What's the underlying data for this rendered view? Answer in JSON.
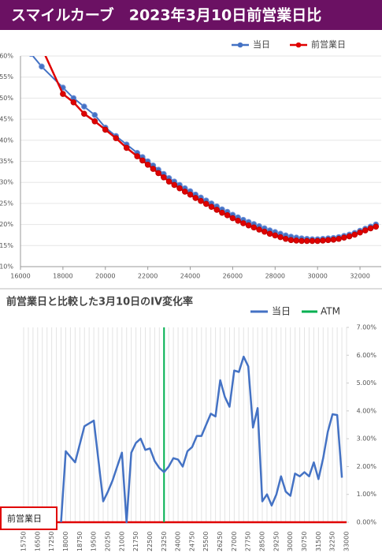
{
  "header": {
    "title": "スマイルカーブ　2023年3月10日前営業日比"
  },
  "chart_data": [
    {
      "type": "line",
      "x": [
        16500,
        17000,
        18000,
        18500,
        19000,
        19500,
        20000,
        20500,
        21000,
        21500,
        21750,
        22000,
        22250,
        22500,
        22750,
        23000,
        23250,
        23500,
        23750,
        24000,
        24250,
        24500,
        24750,
        25000,
        25250,
        25500,
        25750,
        26000,
        26250,
        26500,
        26750,
        27000,
        27250,
        27500,
        27750,
        28000,
        28250,
        28500,
        28750,
        29000,
        29250,
        29500,
        29750,
        30000,
        30250,
        30500,
        30750,
        31000,
        31250,
        31500,
        31750,
        32000,
        32250,
        32500,
        32750
      ],
      "series": [
        {
          "name": "当日",
          "color": "#4472c4",
          "values": [
            60.5,
            57.5,
            52.5,
            50,
            48,
            46,
            43,
            41,
            39,
            37,
            36,
            35,
            34,
            33,
            32,
            31,
            30.2,
            29.4,
            28.6,
            27.9,
            27.1,
            26.4,
            25.7,
            25,
            24.3,
            23.6,
            23,
            22.3,
            21.7,
            21.1,
            20.6,
            20.1,
            19.6,
            19.1,
            18.6,
            18.2,
            17.8,
            17.4,
            17.1,
            16.9,
            16.7,
            16.6,
            16.5,
            16.5,
            16.6,
            16.7,
            16.8,
            17,
            17.3,
            17.6,
            18,
            18.5,
            19,
            19.5,
            20
          ]
        },
        {
          "name": "前営業日",
          "color": "#e00000",
          "values": [
            null,
            62,
            51,
            49,
            46.3,
            44.5,
            42.5,
            40.5,
            38.2,
            36.2,
            35.2,
            34.2,
            33.2,
            32.2,
            31.2,
            30.2,
            29.4,
            28.6,
            27.8,
            27.1,
            26.3,
            25.6,
            24.9,
            24.2,
            23.5,
            22.8,
            22.2,
            21.5,
            20.9,
            20.3,
            19.8,
            19.3,
            18.8,
            18.3,
            17.8,
            17.4,
            17.0,
            16.6,
            16.3,
            16.2,
            16.1,
            16.1,
            16.1,
            16.1,
            16.2,
            16.3,
            16.4,
            16.6,
            16.9,
            17.2,
            17.6,
            18.1,
            18.6,
            19.1,
            19.5
          ]
        }
      ],
      "xlim": [
        16000,
        33000
      ],
      "xticks": [
        16000,
        18000,
        20000,
        22000,
        24000,
        26000,
        28000,
        30000,
        32000
      ],
      "ylim": [
        10,
        60
      ],
      "yticks": [
        {
          "value": 10,
          "label": "10%"
        },
        {
          "value": 15,
          "label": "15%"
        },
        {
          "value": 20,
          "label": "20%"
        },
        {
          "value": 25,
          "label": "25%"
        },
        {
          "value": 30,
          "label": "30%"
        },
        {
          "value": 35,
          "label": "35%"
        },
        {
          "value": 40,
          "label": "40%"
        },
        {
          "value": 45,
          "label": "45%"
        },
        {
          "value": 50,
          "label": "50%"
        },
        {
          "value": 55,
          "label": "55%"
        },
        {
          "value": 60,
          "label": "60%"
        }
      ],
      "grid": true,
      "legend": "top-right"
    },
    {
      "type": "line",
      "title": "前営業日と比較した3月10日のIV変化率",
      "categories": [
        "15750",
        null,
        null,
        "16500",
        null,
        null,
        "17250",
        null,
        null,
        "18000",
        null,
        null,
        "18750",
        null,
        null,
        "19500",
        null,
        null,
        "20250",
        null,
        null,
        "21000",
        null,
        null,
        "21750",
        null,
        null,
        "22500",
        null,
        null,
        "23250",
        null,
        null,
        "24000",
        null,
        null,
        "24750",
        null,
        null,
        "25500",
        null,
        null,
        "26250",
        null,
        null,
        "27000",
        null,
        null,
        "27750",
        null,
        null,
        "28500",
        null,
        null,
        "29250",
        null,
        null,
        "30000",
        null,
        null,
        "30750",
        null,
        null,
        "31500",
        null,
        null,
        "32250",
        null,
        null,
        "33000"
      ],
      "series": [
        {
          "name": "当日",
          "color": "#4472c4",
          "axis": "y2",
          "values": [
            null,
            null,
            null,
            null,
            null,
            null,
            null,
            null,
            0.0,
            2.55,
            2.35,
            2.15,
            2.8,
            3.45,
            3.55,
            3.65,
            2.2,
            0.75,
            1.1,
            1.5,
            2.0,
            2.5,
            0.0,
            2.5,
            2.85,
            3.0,
            2.6,
            2.65,
            2.2,
            1.95,
            1.8,
            2.0,
            2.3,
            2.25,
            2.0,
            2.55,
            2.7,
            3.1,
            3.1,
            3.5,
            3.9,
            3.8,
            5.1,
            4.5,
            4.15,
            5.45,
            5.4,
            5.95,
            5.6,
            3.4,
            4.1,
            0.75,
            1.0,
            0.6,
            1.0,
            1.65,
            1.1,
            0.95,
            1.75,
            1.65,
            1.8,
            1.65,
            2.15,
            1.55,
            2.3,
            3.25,
            3.88,
            3.85,
            1.6,
            null
          ]
        }
      ],
      "atm": {
        "name": "ATM",
        "x": 23250,
        "color": "#00b050"
      },
      "baseline": {
        "label": "前営業日",
        "value": 0,
        "color": "#e00000"
      },
      "y2lim": [
        0,
        7
      ],
      "y2ticks": [
        {
          "value": 0,
          "label": "0.00%"
        },
        {
          "value": 1,
          "label": "1.00%"
        },
        {
          "value": 2,
          "label": "2.00%"
        },
        {
          "value": 3,
          "label": "3.00%"
        },
        {
          "value": 4,
          "label": "4.00%"
        },
        {
          "value": 5,
          "label": "5.00%"
        },
        {
          "value": 6,
          "label": "6.00%"
        },
        {
          "value": 7,
          "label": "7.00%"
        }
      ],
      "grid": true,
      "legend": "top-right"
    }
  ]
}
